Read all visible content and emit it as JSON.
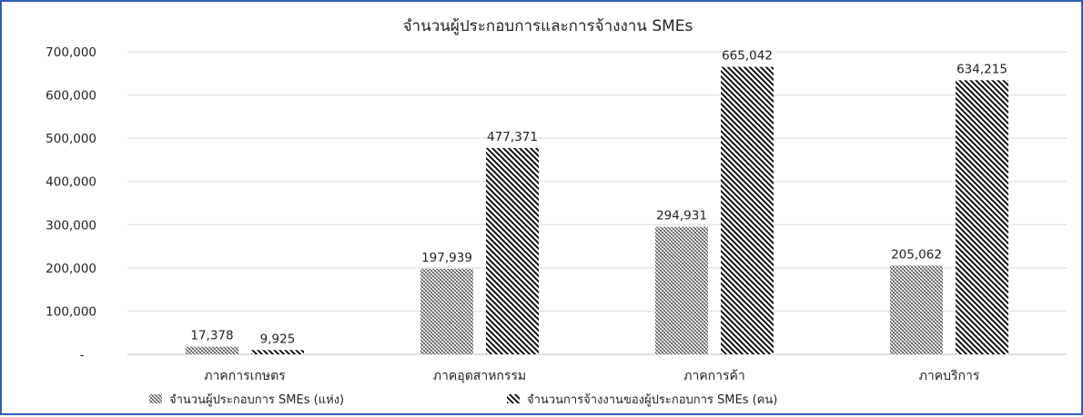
{
  "chart_data": {
    "type": "bar",
    "title": "จำนวนผู้ประกอบการและการจ้างงาน SMEs",
    "categories": [
      "ภาคการเกษตร",
      "ภาคอุตสาหกรรม",
      "ภาคการค้า",
      "ภาคบริการ"
    ],
    "series": [
      {
        "name": "จำนวนผู้ประกอบการ SMEs (แห่ง)",
        "values": [
          17378,
          197939,
          294931,
          205062
        ],
        "pattern": "dots"
      },
      {
        "name": "จำนวนการจ้างงานของผู้ประกอบการ SMEs (คน)",
        "values": [
          9925,
          477371,
          665042,
          634215
        ],
        "pattern": "diagonal"
      }
    ],
    "data_labels": [
      [
        "17,378",
        "197,939",
        "294,931",
        "205,062"
      ],
      [
        "9,925",
        "477,371",
        "665,042",
        "634,215"
      ]
    ],
    "yticks": [
      "-",
      "100,000",
      "200,000",
      "300,000",
      "400,000",
      "500,000",
      "600,000",
      "700,000"
    ],
    "ylim": [
      0,
      700000
    ],
    "grid": true,
    "legend": "bottom",
    "colors": {
      "bar_fill": "#000000",
      "grid": "#d9d9d9",
      "frame": "#2f5fb3"
    }
  }
}
